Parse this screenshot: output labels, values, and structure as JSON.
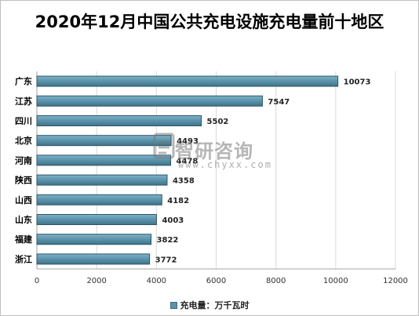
{
  "chart_data": {
    "type": "bar",
    "orientation": "horizontal",
    "title": "2020年12月中国公共充电设施充电量前十地区",
    "categories": [
      "广东",
      "江苏",
      "四川",
      "北京",
      "河南",
      "陕西",
      "山西",
      "山东",
      "福建",
      "浙江"
    ],
    "series": [
      {
        "name": "充电量：万千瓦时",
        "values": [
          10073,
          7547,
          5502,
          4493,
          4478,
          4358,
          4182,
          4003,
          3822,
          3772
        ]
      }
    ],
    "xlim": [
      0,
      12000
    ],
    "x_ticks": [
      "0",
      "2000",
      "4000",
      "6000",
      "8000",
      "10000",
      "12000"
    ],
    "grid": "vertical",
    "legend_position": "bottom",
    "bar_color": "#5b93ab",
    "bar_edge_color": "#2f5566"
  },
  "watermark": {
    "name": "智研咨询",
    "url": "www.chyxx.com"
  }
}
